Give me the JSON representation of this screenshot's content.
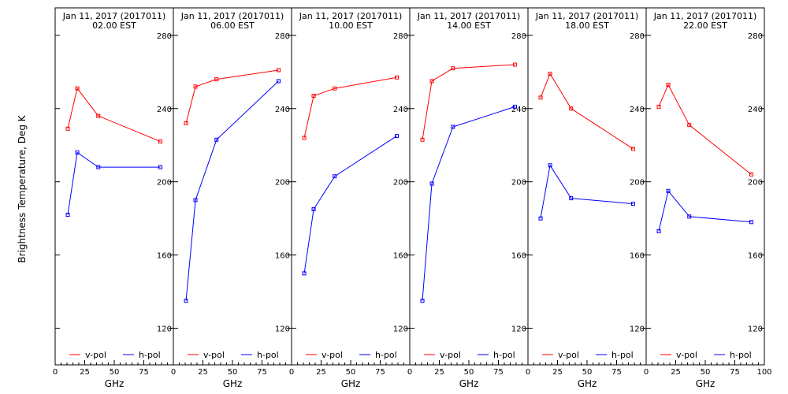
{
  "figure": {
    "ylabel": "Brightness Temperature, Deg K",
    "xlabel": "GHz"
  },
  "chart_data": [
    {
      "type": "line",
      "title": "Jan 11, 2017 (2017011)",
      "subtitle": "02.00 EST",
      "xlabel": "GHz",
      "ylabel": "Brightness Temperature, Deg K",
      "xlim": [
        0,
        100
      ],
      "ylim": [
        100,
        295
      ],
      "xticks": [
        0,
        25,
        50,
        75,
        100
      ],
      "yticks": [
        120,
        160,
        200,
        240,
        280
      ],
      "grid": false,
      "legend": "bottom",
      "x": [
        10.7,
        18.7,
        36.5,
        89.0
      ],
      "series": [
        {
          "name": "v-pol",
          "color": "#ff0000",
          "values": [
            229,
            251,
            236,
            222
          ]
        },
        {
          "name": "h-pol",
          "color": "#0000ff",
          "values": [
            182,
            216,
            208,
            208
          ]
        }
      ]
    },
    {
      "type": "line",
      "title": "Jan 11, 2017 (2017011)",
      "subtitle": "06.00 EST",
      "xlabel": "GHz",
      "xlim": [
        0,
        100
      ],
      "ylim": [
        100,
        295
      ],
      "xticks": [
        0,
        25,
        50,
        75,
        100
      ],
      "yticks": [
        120,
        160,
        200,
        240,
        280
      ],
      "grid": false,
      "legend": "bottom",
      "x": [
        10.7,
        18.7,
        36.5,
        89.0
      ],
      "series": [
        {
          "name": "v-pol",
          "color": "#ff0000",
          "values": [
            232,
            252,
            256,
            261
          ]
        },
        {
          "name": "h-pol",
          "color": "#0000ff",
          "values": [
            135,
            190,
            223,
            255
          ]
        }
      ]
    },
    {
      "type": "line",
      "title": "Jan 11, 2017 (2017011)",
      "subtitle": "10.00 EST",
      "xlabel": "GHz",
      "xlim": [
        0,
        100
      ],
      "ylim": [
        100,
        295
      ],
      "xticks": [
        0,
        25,
        50,
        75,
        100
      ],
      "yticks": [
        120,
        160,
        200,
        240,
        280
      ],
      "grid": false,
      "legend": "bottom",
      "x": [
        10.7,
        18.7,
        36.5,
        89.0
      ],
      "series": [
        {
          "name": "v-pol",
          "color": "#ff0000",
          "values": [
            224,
            247,
            251,
            257
          ]
        },
        {
          "name": "h-pol",
          "color": "#0000ff",
          "values": [
            150,
            185,
            203,
            225
          ]
        }
      ]
    },
    {
      "type": "line",
      "title": "Jan 11, 2017 (2017011)",
      "subtitle": "14.00 EST",
      "xlabel": "GHz",
      "xlim": [
        0,
        100
      ],
      "ylim": [
        100,
        295
      ],
      "xticks": [
        0,
        25,
        50,
        75,
        100
      ],
      "yticks": [
        120,
        160,
        200,
        240,
        280
      ],
      "grid": false,
      "legend": "bottom",
      "x": [
        10.7,
        18.7,
        36.5,
        89.0
      ],
      "series": [
        {
          "name": "v-pol",
          "color": "#ff0000",
          "values": [
            223,
            255,
            262,
            264
          ]
        },
        {
          "name": "h-pol",
          "color": "#0000ff",
          "values": [
            135,
            199,
            230,
            241
          ]
        }
      ]
    },
    {
      "type": "line",
      "title": "Jan 11, 2017 (2017011)",
      "subtitle": "18.00 EST",
      "xlabel": "GHz",
      "xlim": [
        0,
        100
      ],
      "ylim": [
        100,
        295
      ],
      "xticks": [
        0,
        25,
        50,
        75,
        100
      ],
      "yticks": [
        120,
        160,
        200,
        240,
        280
      ],
      "grid": false,
      "legend": "bottom",
      "x": [
        10.7,
        18.7,
        36.5,
        89.0
      ],
      "series": [
        {
          "name": "v-pol",
          "color": "#ff0000",
          "values": [
            246,
            259,
            240,
            218
          ]
        },
        {
          "name": "h-pol",
          "color": "#0000ff",
          "values": [
            180,
            209,
            191,
            188
          ]
        }
      ]
    },
    {
      "type": "line",
      "title": "Jan 11, 2017 (2017011)",
      "subtitle": "22.00 EST",
      "xlabel": "GHz",
      "xlim": [
        0,
        100
      ],
      "ylim": [
        100,
        295
      ],
      "xticks": [
        0,
        25,
        50,
        75,
        100
      ],
      "yticks": [
        120,
        160,
        200,
        240,
        280
      ],
      "grid": false,
      "legend": "bottom",
      "x": [
        10.7,
        18.7,
        36.5,
        89.0
      ],
      "series": [
        {
          "name": "v-pol",
          "color": "#ff0000",
          "values": [
            241,
            253,
            231,
            204
          ]
        },
        {
          "name": "h-pol",
          "color": "#0000ff",
          "values": [
            173,
            195,
            181,
            178
          ]
        }
      ]
    }
  ]
}
